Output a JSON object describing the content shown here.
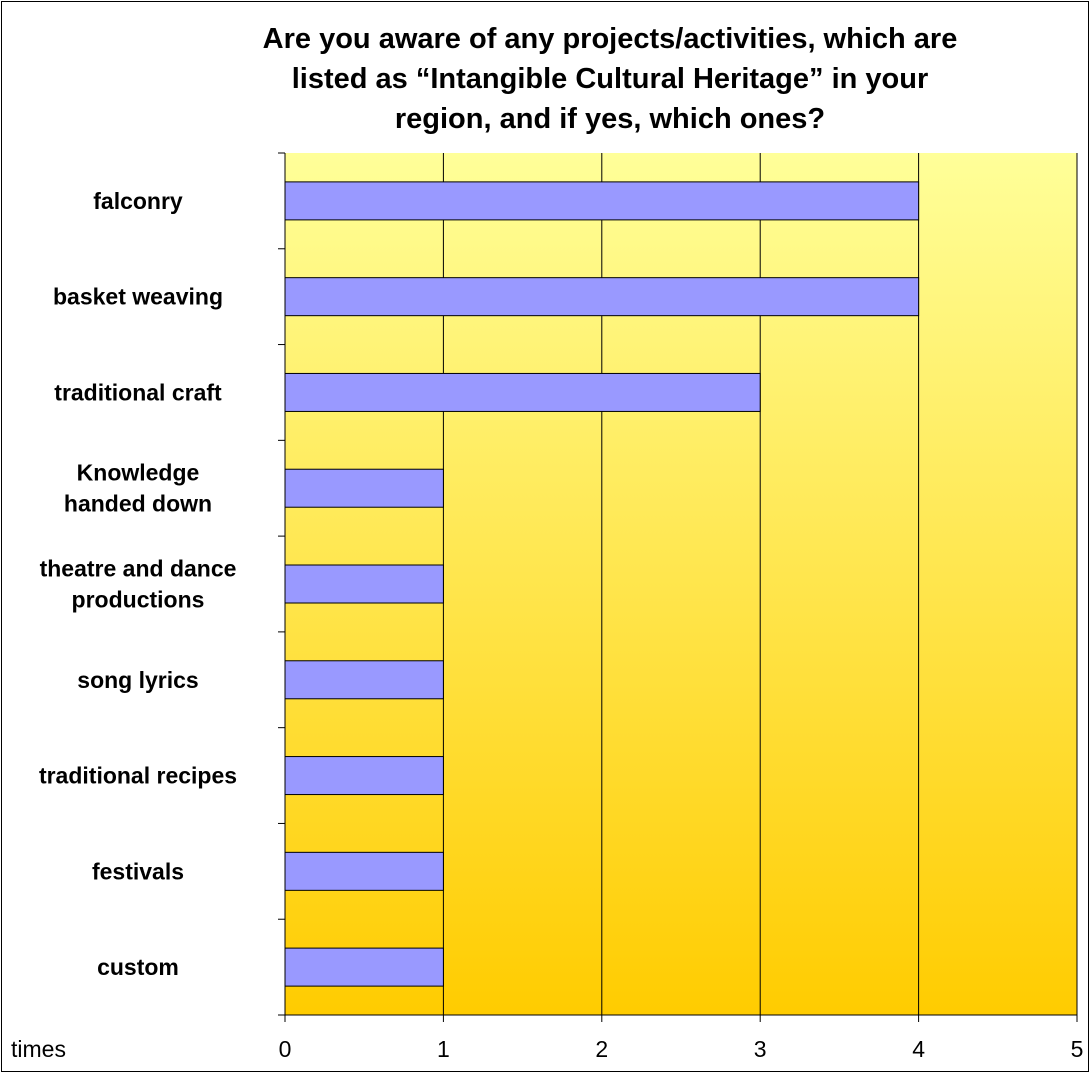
{
  "chart_data": {
    "type": "bar",
    "orientation": "horizontal",
    "title_lines": [
      "Are you aware of any projects/activities, which are",
      "listed as “Intangible Cultural Heritage” in your",
      "region, and if yes, which ones?"
    ],
    "categories": [
      [
        "falconry"
      ],
      [
        "basket weaving"
      ],
      [
        "traditional craft"
      ],
      [
        "Knowledge",
        "handed down"
      ],
      [
        "theatre and dance",
        "productions"
      ],
      [
        "song lyrics"
      ],
      [
        "traditional recipes"
      ],
      [
        "festivals"
      ],
      [
        "custom"
      ]
    ],
    "values": [
      4,
      4,
      3,
      1,
      1,
      1,
      1,
      1,
      1
    ],
    "xlabel": "times",
    "xlim": [
      0,
      5
    ],
    "xticks": [
      "0",
      "1",
      "2",
      "3",
      "4",
      "5"
    ],
    "grid": true,
    "legend": "none",
    "colors": {
      "bar": "#9999ff",
      "plot_top": "#ffff99",
      "plot_bottom": "#ffcc00",
      "grid": "#000000"
    }
  }
}
